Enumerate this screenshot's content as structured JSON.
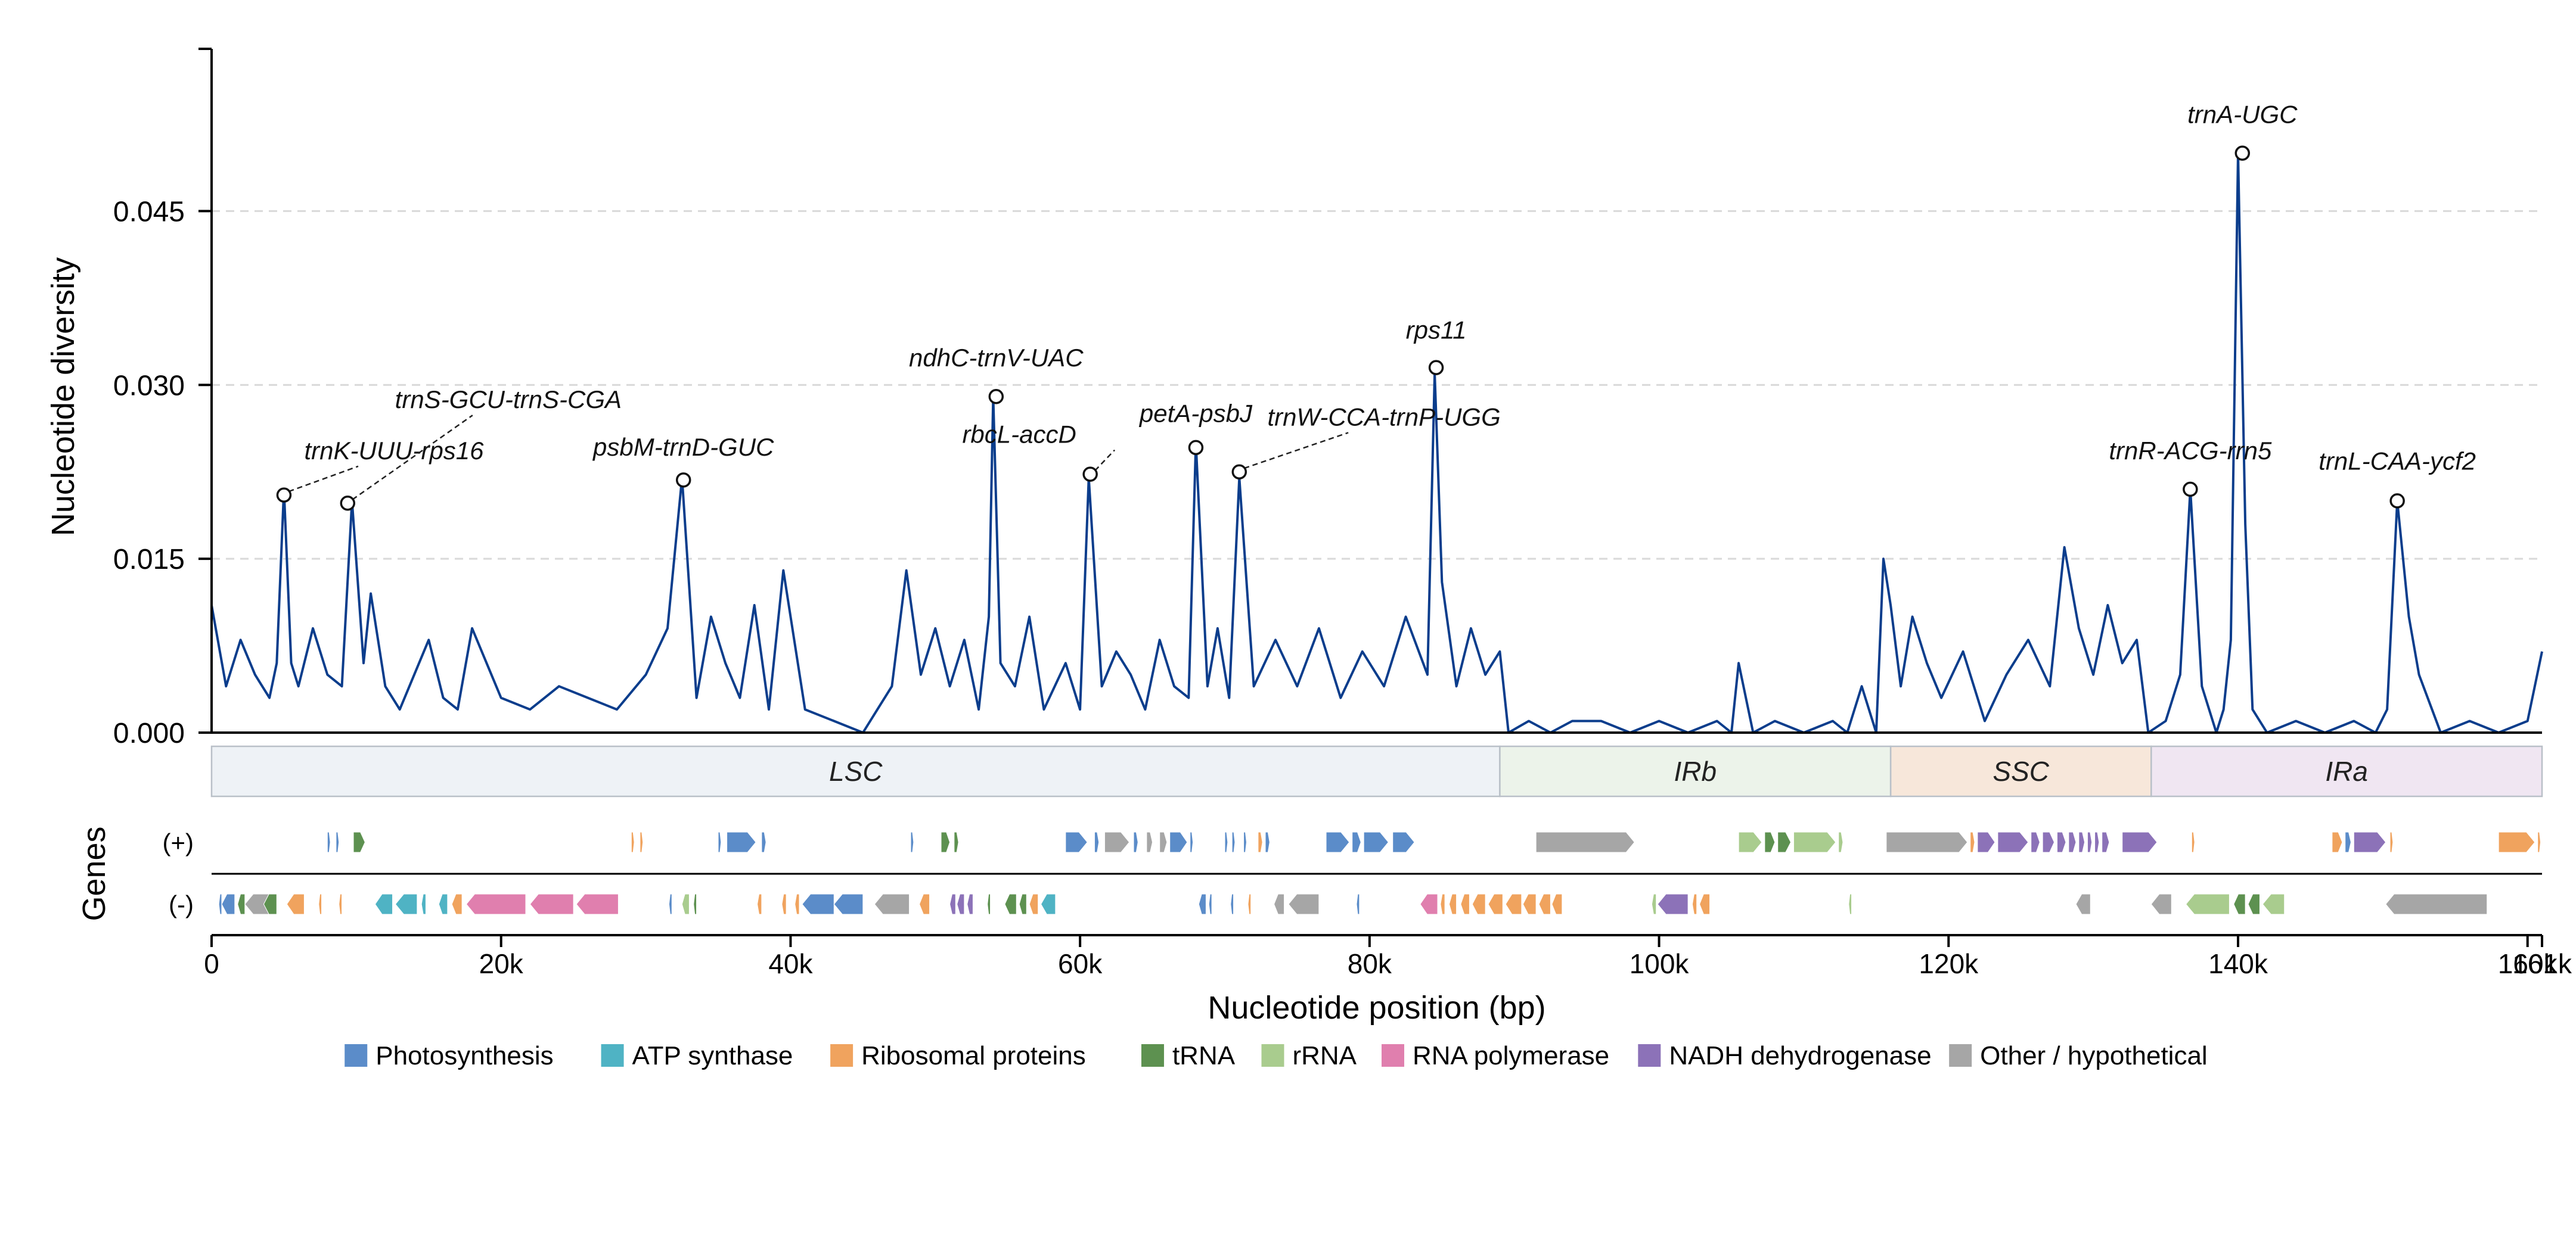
{
  "chart_data": {
    "type": "line",
    "title": "",
    "xlabel": "Nucleotide position (bp)",
    "ylabel": "Nucleotide diversity",
    "genes_label": "Genes",
    "xlim": [
      0,
      161000
    ],
    "ylim": [
      0,
      0.059
    ],
    "xticks": [
      0,
      20000,
      40000,
      60000,
      80000,
      100000,
      120000,
      140000,
      160000,
      161000
    ],
    "xtick_labels": [
      "0",
      "20k",
      "40k",
      "60k",
      "80k",
      "100k",
      "120k",
      "140k",
      "160k",
      "161k"
    ],
    "yticks": [
      0.0,
      0.015,
      0.03,
      0.045
    ],
    "ytick_labels": [
      "0.000",
      "0.015",
      "0.030",
      "0.045"
    ],
    "grid": "horizontal dashed",
    "line_color": "#0b3d8c",
    "series": [
      {
        "name": "",
        "x": [
          0,
          1000,
          2000,
          3000,
          4000,
          4500,
          5000,
          5500,
          6000,
          7000,
          8000,
          9000,
          9700,
          10500,
          11000,
          12000,
          13000,
          15000,
          16000,
          17000,
          18000,
          20000,
          22000,
          24000,
          26000,
          28000,
          30000,
          31500,
          32500,
          33500,
          34500,
          35500,
          36500,
          37500,
          38500,
          39500,
          41000,
          43000,
          45000,
          46000,
          47000,
          48000,
          49000,
          50000,
          51000,
          52000,
          53000,
          53700,
          54000,
          54500,
          55500,
          56500,
          57500,
          59000,
          60000,
          60600,
          61500,
          62500,
          63500,
          64500,
          65500,
          66500,
          67500,
          68000,
          68800,
          69500,
          70300,
          71000,
          72000,
          73500,
          75000,
          76500,
          78000,
          79500,
          81000,
          82500,
          84000,
          84500,
          85000,
          86000,
          87000,
          88000,
          89000,
          89600,
          91000,
          92500,
          94000,
          96000,
          98000,
          100000,
          102000,
          104000,
          105000,
          105500,
          106500,
          108000,
          110000,
          112000,
          113000,
          114000,
          115000,
          115500,
          116000,
          116700,
          117500,
          118500,
          119500,
          121000,
          122500,
          124000,
          125500,
          127000,
          128000,
          129000,
          130000,
          131000,
          132000,
          133000,
          133800,
          135000,
          136000,
          136700,
          137500,
          138500,
          139000,
          139500,
          140000,
          140500,
          141000,
          142000,
          144000,
          146000,
          148000,
          149500,
          150300,
          151000,
          151800,
          152500,
          154000,
          156000,
          158000,
          160000,
          161000
        ],
        "values": [
          0.011,
          0.004,
          0.008,
          0.005,
          0.003,
          0.006,
          0.021,
          0.006,
          0.004,
          0.009,
          0.005,
          0.004,
          0.02,
          0.006,
          0.012,
          0.004,
          0.002,
          0.008,
          0.003,
          0.002,
          0.009,
          0.003,
          0.002,
          0.004,
          0.003,
          0.002,
          0.005,
          0.009,
          0.022,
          0.003,
          0.01,
          0.006,
          0.003,
          0.011,
          0.002,
          0.014,
          0.002,
          0.001,
          0.0,
          0.002,
          0.004,
          0.014,
          0.005,
          0.009,
          0.004,
          0.008,
          0.002,
          0.01,
          0.029,
          0.006,
          0.004,
          0.01,
          0.002,
          0.006,
          0.002,
          0.022,
          0.004,
          0.007,
          0.005,
          0.002,
          0.008,
          0.004,
          0.003,
          0.025,
          0.004,
          0.009,
          0.003,
          0.022,
          0.004,
          0.008,
          0.004,
          0.009,
          0.003,
          0.007,
          0.004,
          0.01,
          0.005,
          0.031,
          0.013,
          0.004,
          0.009,
          0.005,
          0.007,
          0.0,
          0.001,
          0.0,
          0.001,
          0.001,
          0.0,
          0.001,
          0.0,
          0.001,
          0.0,
          0.006,
          0.0,
          0.001,
          0.0,
          0.001,
          0.0,
          0.004,
          0.0,
          0.015,
          0.011,
          0.004,
          0.01,
          0.006,
          0.003,
          0.007,
          0.001,
          0.005,
          0.008,
          0.004,
          0.016,
          0.009,
          0.005,
          0.011,
          0.006,
          0.008,
          0.0,
          0.001,
          0.005,
          0.021,
          0.004,
          0.0,
          0.002,
          0.008,
          0.05,
          0.018,
          0.002,
          0.0,
          0.001,
          0.0,
          0.001,
          0.0,
          0.002,
          0.02,
          0.01,
          0.005,
          0.0,
          0.001,
          0.0,
          0.001,
          0.007
        ]
      }
    ],
    "peaks": [
      {
        "label": "trnK-UUU-rps16",
        "x": 5000,
        "y": 0.0205,
        "lx": 12600,
        "ly": 0.0236,
        "leader": true
      },
      {
        "label": "trnS-GCU-trnS-CGA",
        "x": 9400,
        "y": 0.0198,
        "lx": 20500,
        "ly": 0.028,
        "leader": true
      },
      {
        "label": "psbM-trnD-GUC",
        "x": 32600,
        "y": 0.0218,
        "lx": 32600,
        "ly": 0.0239,
        "leader": false
      },
      {
        "label": "ndhC-trnV-UAC",
        "x": 54200,
        "y": 0.029,
        "lx": 54200,
        "ly": 0.0316,
        "leader": false
      },
      {
        "label": "rbcL-accD",
        "x": 60700,
        "y": 0.0223,
        "lx": 55800,
        "ly": 0.025,
        "leader": true
      },
      {
        "label": "petA-psbJ",
        "x": 68000,
        "y": 0.0246,
        "lx": 68000,
        "ly": 0.0268,
        "leader": false
      },
      {
        "label": "trnW-CCA-trnP-UGG",
        "x": 71000,
        "y": 0.0225,
        "lx": 81000,
        "ly": 0.0265,
        "leader": true
      },
      {
        "label": "rps11",
        "x": 84600,
        "y": 0.0315,
        "lx": 84600,
        "ly": 0.034,
        "leader": false
      },
      {
        "label": "trnR-ACG-rrn5",
        "x": 136700,
        "y": 0.021,
        "lx": 136700,
        "ly": 0.0236,
        "leader": false
      },
      {
        "label": "trnA-UGC",
        "x": 140300,
        "y": 0.05,
        "lx": 140300,
        "ly": 0.0526,
        "leader": false
      },
      {
        "label": "trnL-CAA-ycf2",
        "x": 151000,
        "y": 0.02,
        "lx": 151000,
        "ly": 0.0227,
        "leader": false
      }
    ],
    "regions": [
      {
        "label": "LSC",
        "start": 0,
        "end": 89000,
        "color": "#eef2f6"
      },
      {
        "label": "IRb",
        "start": 89000,
        "end": 116000,
        "color": "#ecf3ea"
      },
      {
        "label": "SSC",
        "start": 116000,
        "end": 134000,
        "color": "#f7e7da"
      },
      {
        "label": "IRa",
        "start": 134000,
        "end": 161000,
        "color": "#f0e6f2"
      }
    ],
    "strands": [
      "(+)",
      "(-)"
    ],
    "gene_categories": [
      {
        "name": "Photosynthesis",
        "color": "#5b8cc9"
      },
      {
        "name": "ATP synthase",
        "color": "#4fb3c4"
      },
      {
        "name": "Ribosomal proteins",
        "color": "#f0a35e"
      },
      {
        "name": "tRNA",
        "color": "#5d9150"
      },
      {
        "name": "rRNA",
        "color": "#a9cc8e"
      },
      {
        "name": "RNA polymerase",
        "color": "#e07fae"
      },
      {
        "name": "NADH dehydrogenase",
        "color": "#8c72b8"
      },
      {
        "name": "Other / hypothetical",
        "color": "#a6a6a6"
      }
    ],
    "genes_plus": [
      [
        8000,
        8200,
        0
      ],
      [
        8600,
        8800,
        0
      ],
      [
        9800,
        10600,
        3
      ],
      [
        29000,
        29200,
        2
      ],
      [
        29600,
        29800,
        2
      ],
      [
        35000,
        35200,
        0
      ],
      [
        35600,
        37600,
        0
      ],
      [
        38000,
        38300,
        0
      ],
      [
        48300,
        48500,
        0
      ],
      [
        50400,
        51000,
        3
      ],
      [
        51300,
        51600,
        3
      ],
      [
        59000,
        60500,
        0
      ],
      [
        61000,
        61300,
        0
      ],
      [
        61700,
        63400,
        7
      ],
      [
        63700,
        64000,
        0
      ],
      [
        64600,
        65000,
        7
      ],
      [
        65500,
        66000,
        7
      ],
      [
        66200,
        67400,
        0
      ],
      [
        67600,
        67800,
        0
      ],
      [
        70000,
        70200,
        0
      ],
      [
        70500,
        70700,
        0
      ],
      [
        71300,
        71500,
        0
      ],
      [
        72300,
        72600,
        2
      ],
      [
        72800,
        73100,
        0
      ],
      [
        77000,
        78600,
        0
      ],
      [
        78800,
        79400,
        0
      ],
      [
        79600,
        81300,
        0
      ],
      [
        81600,
        83100,
        0
      ],
      [
        91500,
        98300,
        7
      ],
      [
        105500,
        107100,
        4
      ],
      [
        107300,
        108000,
        3
      ],
      [
        108200,
        109100,
        3
      ],
      [
        109300,
        112200,
        4
      ],
      [
        112400,
        112700,
        4
      ],
      [
        115700,
        121300,
        7
      ],
      [
        121500,
        121800,
        2
      ],
      [
        122000,
        123200,
        6
      ],
      [
        123400,
        125500,
        6
      ],
      [
        125700,
        126300,
        6
      ],
      [
        126500,
        127300,
        6
      ],
      [
        127500,
        128100,
        6
      ],
      [
        128300,
        128800,
        6
      ],
      [
        129000,
        129400,
        6
      ],
      [
        129600,
        129900,
        6
      ],
      [
        130100,
        130400,
        6
      ],
      [
        130600,
        131100,
        6
      ],
      [
        132000,
        134400,
        6
      ],
      [
        136800,
        137000,
        2
      ],
      [
        146500,
        147200,
        2
      ],
      [
        147400,
        147800,
        0
      ],
      [
        148000,
        150200,
        6
      ],
      [
        150500,
        150700,
        2
      ],
      [
        158000,
        160500,
        2
      ],
      [
        160700,
        160900,
        2
      ]
    ],
    "genes_minus": [
      [
        500,
        700,
        0
      ],
      [
        700,
        1600,
        0
      ],
      [
        1800,
        2300,
        3
      ],
      [
        2300,
        4200,
        7
      ],
      [
        3600,
        4500,
        3
      ],
      [
        5200,
        6400,
        2
      ],
      [
        7400,
        7600,
        2
      ],
      [
        8800,
        9000,
        2
      ],
      [
        11300,
        12500,
        1
      ],
      [
        12700,
        14200,
        1
      ],
      [
        14500,
        14800,
        1
      ],
      [
        15700,
        16300,
        1
      ],
      [
        16600,
        17300,
        2
      ],
      [
        17600,
        21700,
        5
      ],
      [
        22000,
        25000,
        5
      ],
      [
        25200,
        28100,
        5
      ],
      [
        31600,
        31800,
        0
      ],
      [
        32500,
        33000,
        4
      ],
      [
        33300,
        33500,
        3
      ],
      [
        37700,
        38000,
        2
      ],
      [
        39400,
        39700,
        2
      ],
      [
        40300,
        40600,
        2
      ],
      [
        40800,
        43000,
        0
      ],
      [
        43000,
        45000,
        0
      ],
      [
        45800,
        48200,
        7
      ],
      [
        48900,
        49600,
        2
      ],
      [
        51000,
        51400,
        6
      ],
      [
        51500,
        52000,
        6
      ],
      [
        52200,
        52600,
        6
      ],
      [
        53600,
        53800,
        3
      ],
      [
        54800,
        55600,
        3
      ],
      [
        55800,
        56300,
        3
      ],
      [
        56500,
        57100,
        2
      ],
      [
        57300,
        58300,
        1
      ],
      [
        68200,
        68700,
        0
      ],
      [
        68900,
        69100,
        0
      ],
      [
        70400,
        70600,
        0
      ],
      [
        71600,
        71800,
        2
      ],
      [
        73400,
        74100,
        7
      ],
      [
        74400,
        76500,
        7
      ],
      [
        79100,
        79300,
        0
      ],
      [
        83500,
        84700,
        5
      ],
      [
        84900,
        85200,
        2
      ],
      [
        85500,
        86000,
        2
      ],
      [
        86300,
        86900,
        2
      ],
      [
        87100,
        88000,
        2
      ],
      [
        88200,
        89200,
        2
      ],
      [
        89400,
        90500,
        2
      ],
      [
        90600,
        91500,
        2
      ],
      [
        91700,
        92500,
        2
      ],
      [
        92600,
        93300,
        2
      ],
      [
        99500,
        99800,
        4
      ],
      [
        99900,
        102000,
        6
      ],
      [
        102300,
        102600,
        2
      ],
      [
        102800,
        103500,
        2
      ],
      [
        113100,
        113300,
        4
      ],
      [
        128800,
        129800,
        7
      ],
      [
        134000,
        135400,
        7
      ],
      [
        136400,
        139400,
        4
      ],
      [
        139700,
        140500,
        3
      ],
      [
        140700,
        141500,
        3
      ],
      [
        141700,
        143200,
        4
      ],
      [
        150200,
        157200,
        7
      ]
    ]
  }
}
